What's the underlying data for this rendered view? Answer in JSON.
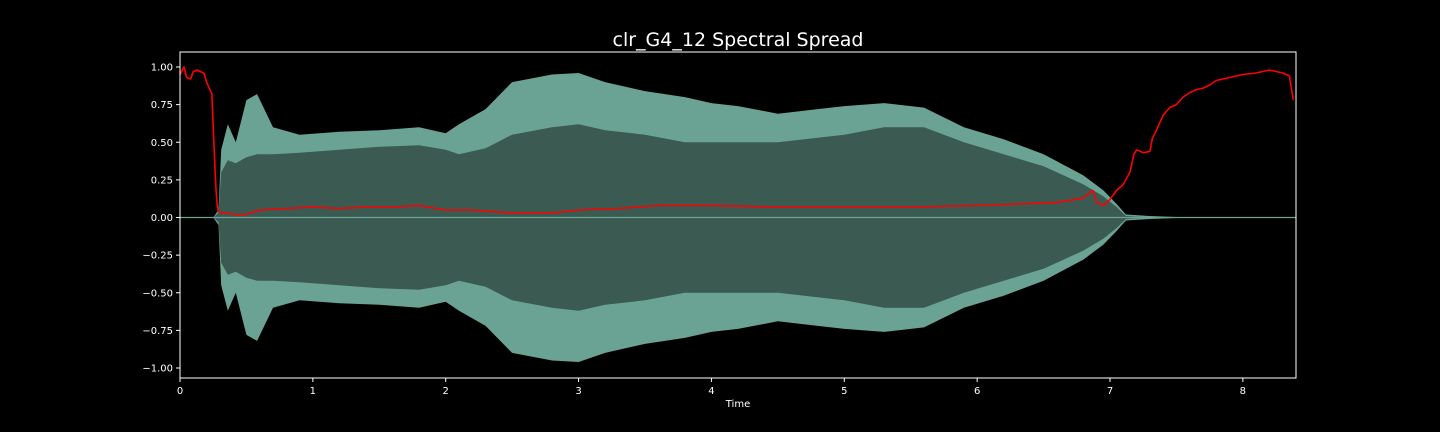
{
  "chart_data": {
    "type": "line",
    "title": "clr_G4_12 Spectral Spread",
    "xlabel": "Time",
    "ylabel": "",
    "xlim": [
      0,
      8.4
    ],
    "ylim": [
      -1.05,
      1.1
    ],
    "xticks": [
      0,
      1,
      2,
      3,
      4,
      5,
      6,
      7,
      8
    ],
    "yticks": [
      1.0,
      0.75,
      0.5,
      0.25,
      0.0,
      -0.25,
      -0.5,
      -0.75,
      -1.0
    ],
    "ytick_labels": [
      "1.00",
      "0.75",
      "0.50",
      "0.25",
      "0.00",
      "−0.25",
      "−0.50",
      "−0.75",
      "−1.00"
    ],
    "grid": false,
    "legend": "none",
    "colors": {
      "background": "#000000",
      "axes": "#ffffff",
      "waveform_peak": "#6aa393",
      "waveform_body": "#3a5a52",
      "spread_line": "#ff0000"
    },
    "series": [
      {
        "kind": "waveform-envelope",
        "x": [
          0,
          0.25,
          0.29,
          0.31,
          0.36,
          0.42,
          0.5,
          0.58,
          0.7,
          0.9,
          1.2,
          1.5,
          1.8,
          2.0,
          2.1,
          2.3,
          2.5,
          2.8,
          3.0,
          3.2,
          3.5,
          3.8,
          4.0,
          4.2,
          4.5,
          4.8,
          5.0,
          5.3,
          5.6,
          5.9,
          6.2,
          6.5,
          6.8,
          6.95,
          7.05,
          7.12,
          7.3,
          7.6,
          8.4
        ],
        "peak": [
          0,
          0,
          0.05,
          0.45,
          0.62,
          0.5,
          0.78,
          0.82,
          0.6,
          0.55,
          0.57,
          0.58,
          0.6,
          0.56,
          0.62,
          0.72,
          0.9,
          0.95,
          0.96,
          0.9,
          0.84,
          0.8,
          0.76,
          0.74,
          0.69,
          0.72,
          0.74,
          0.76,
          0.73,
          0.6,
          0.52,
          0.42,
          0.28,
          0.18,
          0.09,
          0.02,
          0.01,
          0,
          0
        ],
        "body": [
          0,
          0,
          0.03,
          0.3,
          0.38,
          0.36,
          0.4,
          0.42,
          0.42,
          0.43,
          0.45,
          0.47,
          0.48,
          0.45,
          0.42,
          0.46,
          0.55,
          0.6,
          0.62,
          0.58,
          0.55,
          0.5,
          0.5,
          0.5,
          0.5,
          0.53,
          0.55,
          0.6,
          0.6,
          0.5,
          0.42,
          0.34,
          0.22,
          0.14,
          0.07,
          0.01,
          0,
          0,
          0
        ]
      },
      {
        "kind": "line",
        "x": [
          0,
          0.03,
          0.05,
          0.08,
          0.1,
          0.13,
          0.15,
          0.18,
          0.2,
          0.22,
          0.24,
          0.25,
          0.26,
          0.27,
          0.28,
          0.29,
          0.3,
          0.32,
          0.35,
          0.4,
          0.5,
          0.6,
          0.8,
          1.0,
          1.2,
          1.4,
          1.6,
          1.8,
          2.0,
          2.2,
          2.5,
          2.8,
          3.0,
          3.3,
          3.6,
          4.0,
          4.5,
          5.0,
          5.5,
          6.0,
          6.3,
          6.6,
          6.8,
          6.87,
          6.9,
          6.95,
          7.0,
          7.05,
          7.1,
          7.15,
          7.18,
          7.2,
          7.25,
          7.3,
          7.32,
          7.35,
          7.4,
          7.45,
          7.5,
          7.55,
          7.6,
          7.65,
          7.7,
          7.75,
          7.8,
          7.9,
          8.0,
          8.1,
          8.2,
          8.25,
          8.3,
          8.35,
          8.38
        ],
        "y": [
          0.95,
          1.0,
          0.93,
          0.92,
          0.97,
          0.98,
          0.97,
          0.96,
          0.9,
          0.86,
          0.82,
          0.6,
          0.4,
          0.2,
          0.08,
          0.04,
          0.035,
          0.03,
          0.03,
          0.02,
          0.02,
          0.05,
          0.06,
          0.07,
          0.06,
          0.07,
          0.07,
          0.08,
          0.05,
          0.05,
          0.03,
          0.03,
          0.05,
          0.06,
          0.08,
          0.08,
          0.07,
          0.07,
          0.07,
          0.08,
          0.09,
          0.1,
          0.13,
          0.18,
          0.1,
          0.08,
          0.12,
          0.18,
          0.22,
          0.3,
          0.42,
          0.45,
          0.43,
          0.44,
          0.53,
          0.58,
          0.68,
          0.73,
          0.75,
          0.8,
          0.83,
          0.85,
          0.86,
          0.88,
          0.91,
          0.93,
          0.95,
          0.96,
          0.98,
          0.97,
          0.96,
          0.94,
          0.78
        ]
      }
    ]
  }
}
